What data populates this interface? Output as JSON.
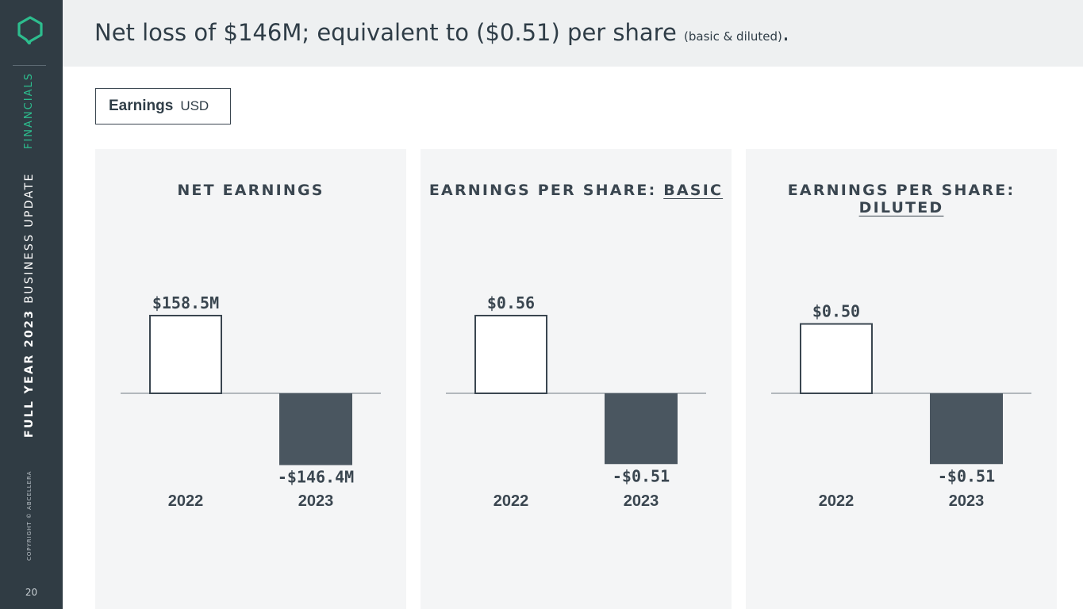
{
  "sidebar": {
    "section": "FINANCIALS",
    "deck_title_bold": "FULL YEAR 2023",
    "deck_title_rest": " BUSINESS UPDATE",
    "copyright": "COPYRIGHT © ABCELLERA",
    "page_number": "20"
  },
  "header": {
    "headline": "Net loss of $146M; equivalent to ($0.51) per share ",
    "headline_note": "(basic & diluted)",
    "headline_end": "."
  },
  "unit_label": {
    "bold": "Earnings",
    "unit": "USD"
  },
  "colors": {
    "sidebar": "#303c44",
    "accent": "#2dbd8e",
    "negative_bar": "#4a5660",
    "positive_bar_fill": "#ffffff",
    "bar_outline": "#3a4650",
    "panel_bg": "#f4f5f6"
  },
  "chart_data": [
    {
      "type": "bar",
      "title_main": "NET EARNINGS",
      "title_underlined": "",
      "categories": [
        "2022",
        "2023"
      ],
      "values": [
        158.5,
        -146.4
      ],
      "value_labels": [
        "$158.5M",
        "-$146.4M"
      ],
      "unit": "USD millions"
    },
    {
      "type": "bar",
      "title_main": "EARNINGS PER SHARE: ",
      "title_underlined": "BASIC",
      "categories": [
        "2022",
        "2023"
      ],
      "values": [
        0.56,
        -0.51
      ],
      "value_labels": [
        "$0.56",
        "-$0.51"
      ],
      "unit": "USD per share"
    },
    {
      "type": "bar",
      "title_main": "EARNINGS PER SHARE: ",
      "title_underlined": "DILUTED",
      "categories": [
        "2022",
        "2023"
      ],
      "values": [
        0.5,
        -0.51
      ],
      "value_labels": [
        "$0.50",
        "-$0.51"
      ],
      "unit": "USD per share"
    }
  ]
}
